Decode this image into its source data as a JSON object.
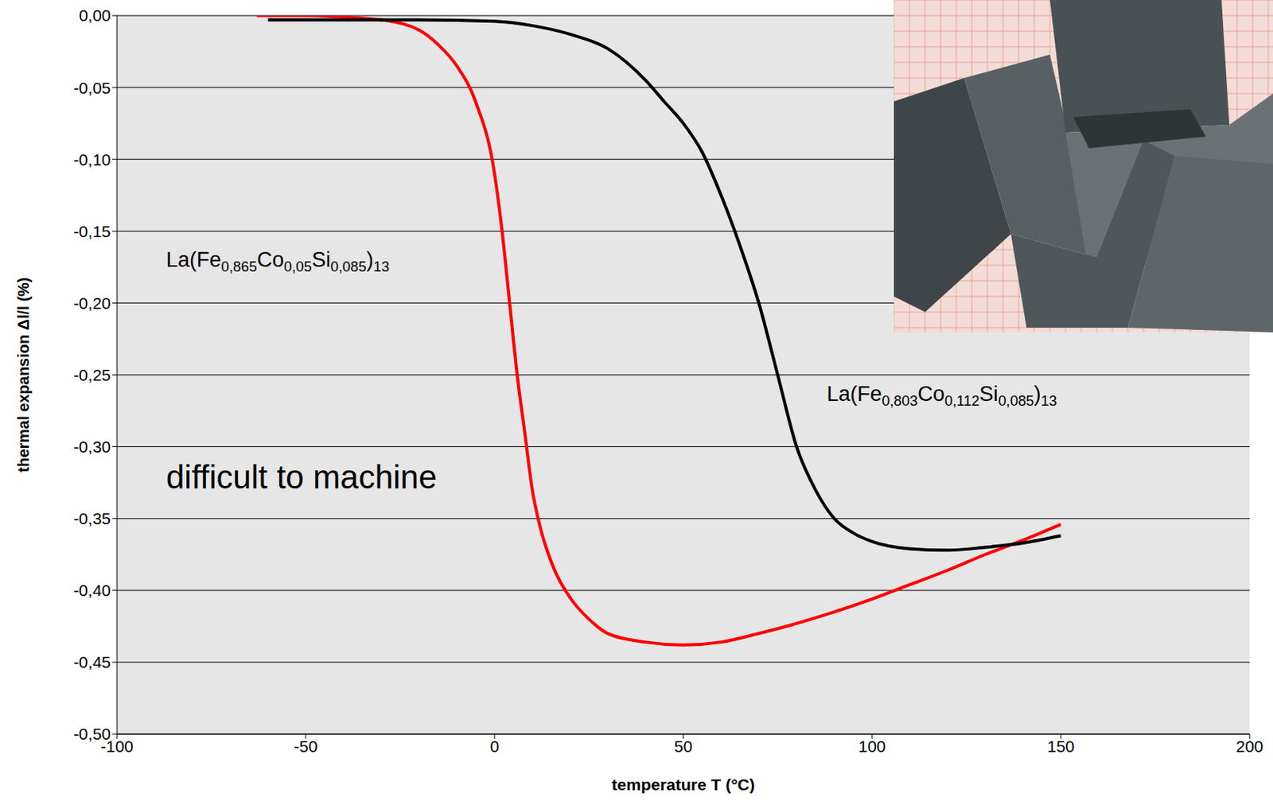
{
  "chart_data": {
    "type": "line",
    "xlabel": "temperature T (°C)",
    "ylabel": "thermal expansion Δl/l (%)",
    "xlim": [
      -100,
      200
    ],
    "xticks": [
      -100,
      -50,
      0,
      50,
      100,
      150,
      200
    ],
    "ylim": [
      -0.5,
      0
    ],
    "yticks": [
      {
        "value": 0,
        "label": "0,00"
      },
      {
        "value": -0.05,
        "label": "-0,05"
      },
      {
        "value": -0.1,
        "label": "-0,10"
      },
      {
        "value": -0.15,
        "label": "-0,15"
      },
      {
        "value": -0.2,
        "label": "-0,20"
      },
      {
        "value": -0.25,
        "label": "-0,25"
      },
      {
        "value": -0.3,
        "label": "-0,30"
      },
      {
        "value": -0.35,
        "label": "-0,35"
      },
      {
        "value": -0.4,
        "label": "-0,40"
      },
      {
        "value": -0.45,
        "label": "-0,45"
      },
      {
        "value": -0.5,
        "label": "-0,50"
      }
    ],
    "grid": true,
    "annotations": [
      "difficult to machine"
    ],
    "series": [
      {
        "name": "La(Fe0,865Co0,05Si0,085)13",
        "color": "#ff0000",
        "x": [
          -63,
          -50,
          -40,
          -30,
          -20,
          -15,
          -10,
          -5,
          0,
          2,
          4,
          6,
          8,
          10,
          12,
          15,
          20,
          25,
          30,
          40,
          50,
          60,
          70,
          80,
          90,
          100,
          110,
          120,
          130,
          140,
          150
        ],
        "values": [
          0,
          0,
          -0.001,
          -0.003,
          -0.01,
          -0.02,
          -0.035,
          -0.06,
          -0.11,
          -0.15,
          -0.2,
          -0.25,
          -0.29,
          -0.33,
          -0.355,
          -0.38,
          -0.405,
          -0.42,
          -0.43,
          -0.436,
          -0.438,
          -0.436,
          -0.43,
          -0.423,
          -0.415,
          -0.406,
          -0.396,
          -0.386,
          -0.375,
          -0.365,
          -0.354
        ]
      },
      {
        "name": "La(Fe0,803Co0,112Si0,085)13",
        "color": "#000000",
        "x": [
          -60,
          -40,
          -20,
          0,
          10,
          20,
          30,
          40,
          45,
          50,
          55,
          60,
          65,
          70,
          75,
          80,
          85,
          90,
          95,
          100,
          110,
          120,
          130,
          140,
          150
        ],
        "values": [
          -0.003,
          -0.003,
          -0.003,
          -0.004,
          -0.007,
          -0.013,
          -0.023,
          -0.045,
          -0.06,
          -0.075,
          -0.095,
          -0.125,
          -0.16,
          -0.2,
          -0.25,
          -0.3,
          -0.33,
          -0.35,
          -0.36,
          -0.366,
          -0.371,
          -0.372,
          -0.37,
          -0.367,
          -0.362
        ]
      }
    ]
  }
}
